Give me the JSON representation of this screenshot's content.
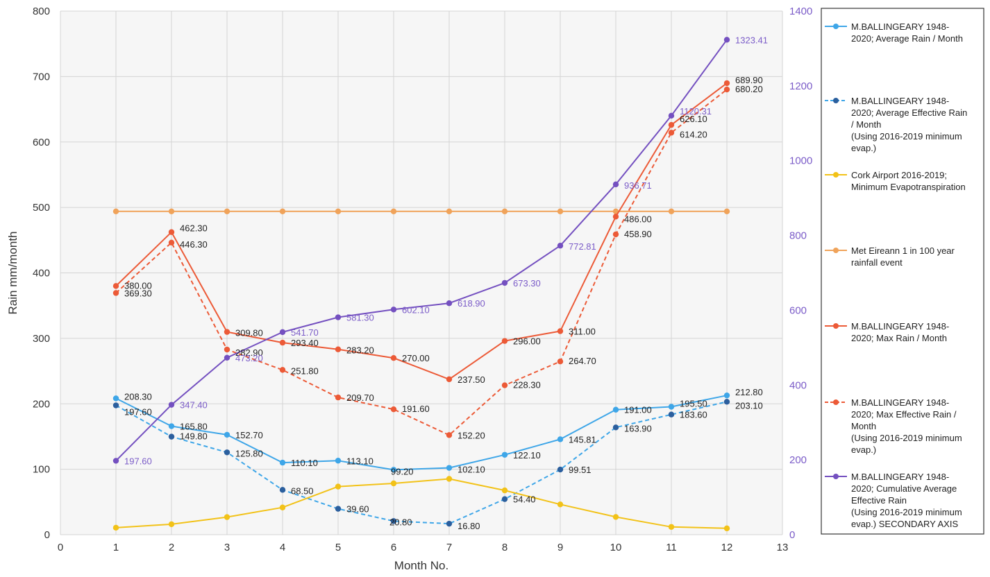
{
  "chart_data": {
    "type": "line",
    "xlabel": "Month No.",
    "ylabel": "Rain mm/month",
    "xlim": [
      0,
      13
    ],
    "x_ticks": [
      "0",
      "1",
      "2",
      "3",
      "4",
      "5",
      "6",
      "7",
      "8",
      "9",
      "10",
      "11",
      "12",
      "13"
    ],
    "ylim": [
      0,
      800
    ],
    "y_ticks": [
      "0",
      "100",
      "200",
      "300",
      "400",
      "500",
      "600",
      "700",
      "800"
    ],
    "y2lim": [
      0,
      1400
    ],
    "y2_ticks": [
      "0",
      "200",
      "400",
      "600",
      "800",
      "1000",
      "1200",
      "1400"
    ],
    "grid": true,
    "legend_position": "right",
    "x": [
      1,
      2,
      3,
      4,
      5,
      6,
      7,
      8,
      9,
      10,
      11,
      12
    ],
    "series": [
      {
        "name": "M.BALLINGEARY 1948-2020; Average Rain / Month",
        "legend_lines": [
          "M.BALLINGEARY 1948-",
          "2020; Average Rain / Month"
        ],
        "color": "#3ea6e8",
        "dash": false,
        "axis": "left",
        "values": [
          208.3,
          165.8,
          152.7,
          110.1,
          113.1,
          99.2,
          102.1,
          122.1,
          145.81,
          191.0,
          195.5,
          212.8
        ],
        "labels": [
          "208.30",
          "165.80",
          "152.70",
          "110.10",
          "113.10",
          "99.20",
          "102.10",
          "122.10",
          "145.81",
          "191.00",
          "195.50",
          "212.80"
        ]
      },
      {
        "name": "M.BALLINGEARY 1948-2020; Average Effective Rain / Month (Using 2016-2019 minimum evap.)",
        "legend_lines": [
          "M.BALLINGEARY 1948-",
          "2020; Average Effective Rain",
          "/ Month",
          "(Using 2016-2019 minimum",
          "evap.)"
        ],
        "color": "#3ea6e8",
        "marker_color": "#2b5f9e",
        "dash": true,
        "axis": "left",
        "values": [
          197.6,
          149.8,
          125.8,
          68.5,
          39.6,
          20.8,
          16.8,
          54.4,
          99.51,
          163.9,
          183.6,
          203.1
        ],
        "labels": [
          "197.60",
          "149.80",
          "125.80",
          "68.50",
          "39.60",
          "20.80",
          "16.80",
          "54.40",
          "99.51",
          "163.90",
          "183.60",
          "203.10"
        ]
      },
      {
        "name": "Cork Airport 2016-2019; Minimum Evapotranspiration",
        "legend_lines": [
          "Cork Airport 2016-2019;",
          "Minimum Evapotranspiration"
        ],
        "color": "#f2c218",
        "dash": false,
        "axis": "left",
        "values": [
          10.7,
          16.0,
          26.9,
          41.6,
          73.5,
          78.4,
          85.3,
          67.7,
          46.3,
          27.1,
          11.9,
          9.7
        ]
      },
      {
        "name": "Met Eireann 1 in 100 year rainfall event",
        "legend_lines": [
          "Met Eireann 1 in 100 year",
          "rainfall event"
        ],
        "color": "#f0a35a",
        "dash": false,
        "axis": "left",
        "values": [
          494,
          494,
          494,
          494,
          494,
          494,
          494,
          494,
          494,
          494,
          494,
          494
        ]
      },
      {
        "name": "M.BALLINGEARY 1948-2020; Max Rain / Month",
        "legend_lines": [
          "M.BALLINGEARY 1948-",
          "2020; Max Rain / Month"
        ],
        "color": "#ec5a37",
        "dash": false,
        "axis": "left",
        "values": [
          380.0,
          462.3,
          309.8,
          293.4,
          283.2,
          270.0,
          237.5,
          296.0,
          311.0,
          486.0,
          626.1,
          689.9
        ],
        "labels": [
          "380.00",
          "462.30",
          "309.80",
          "293.40",
          "283.20",
          "270.00",
          "237.50",
          "296.00",
          "311.00",
          "486.00",
          "626.10",
          "689.90"
        ]
      },
      {
        "name": "M.BALLINGEARY 1948-2020; Max Effective Rain / Month (Using 2016-2019 minimum evap.)",
        "legend_lines": [
          "M.BALLINGEARY 1948-",
          "2020; Max Effective Rain /",
          "Month",
          "(Using 2016-2019 minimum",
          "evap.)"
        ],
        "color": "#ec5a37",
        "dash": true,
        "axis": "left",
        "values": [
          369.3,
          446.3,
          282.9,
          251.8,
          209.7,
          191.6,
          152.2,
          228.3,
          264.7,
          458.9,
          614.2,
          680.2
        ],
        "labels": [
          "369.30",
          "446.30",
          "282.90",
          "251.80",
          "209.70",
          "191.60",
          "152.20",
          "228.30",
          "264.70",
          "458.90",
          "614.20",
          "680.20"
        ]
      },
      {
        "name": "M.BALLINGEARY 1948-2020; Cumulative Average Effective Rain (Using 2016-2019 minimum evap.) SECONDARY AXIS",
        "legend_lines": [
          "M.BALLINGEARY 1948-",
          "2020; Cumulative Average",
          "Effective Rain",
          "(Using 2016-2019 minimum",
          "evap.) SECONDARY AXIS"
        ],
        "color": "#7450c0",
        "dash": false,
        "axis": "right",
        "values": [
          197.6,
          347.4,
          473.2,
          541.7,
          581.3,
          602.1,
          618.9,
          673.3,
          772.81,
          936.71,
          1120.31,
          1323.41
        ],
        "labels": [
          "197.60",
          "347.40",
          "473.20",
          "541.70",
          "581.30",
          "602.10",
          "618.90",
          "673.30",
          "772.81",
          "936.71",
          "1120.31",
          "1323.41"
        ]
      }
    ]
  }
}
